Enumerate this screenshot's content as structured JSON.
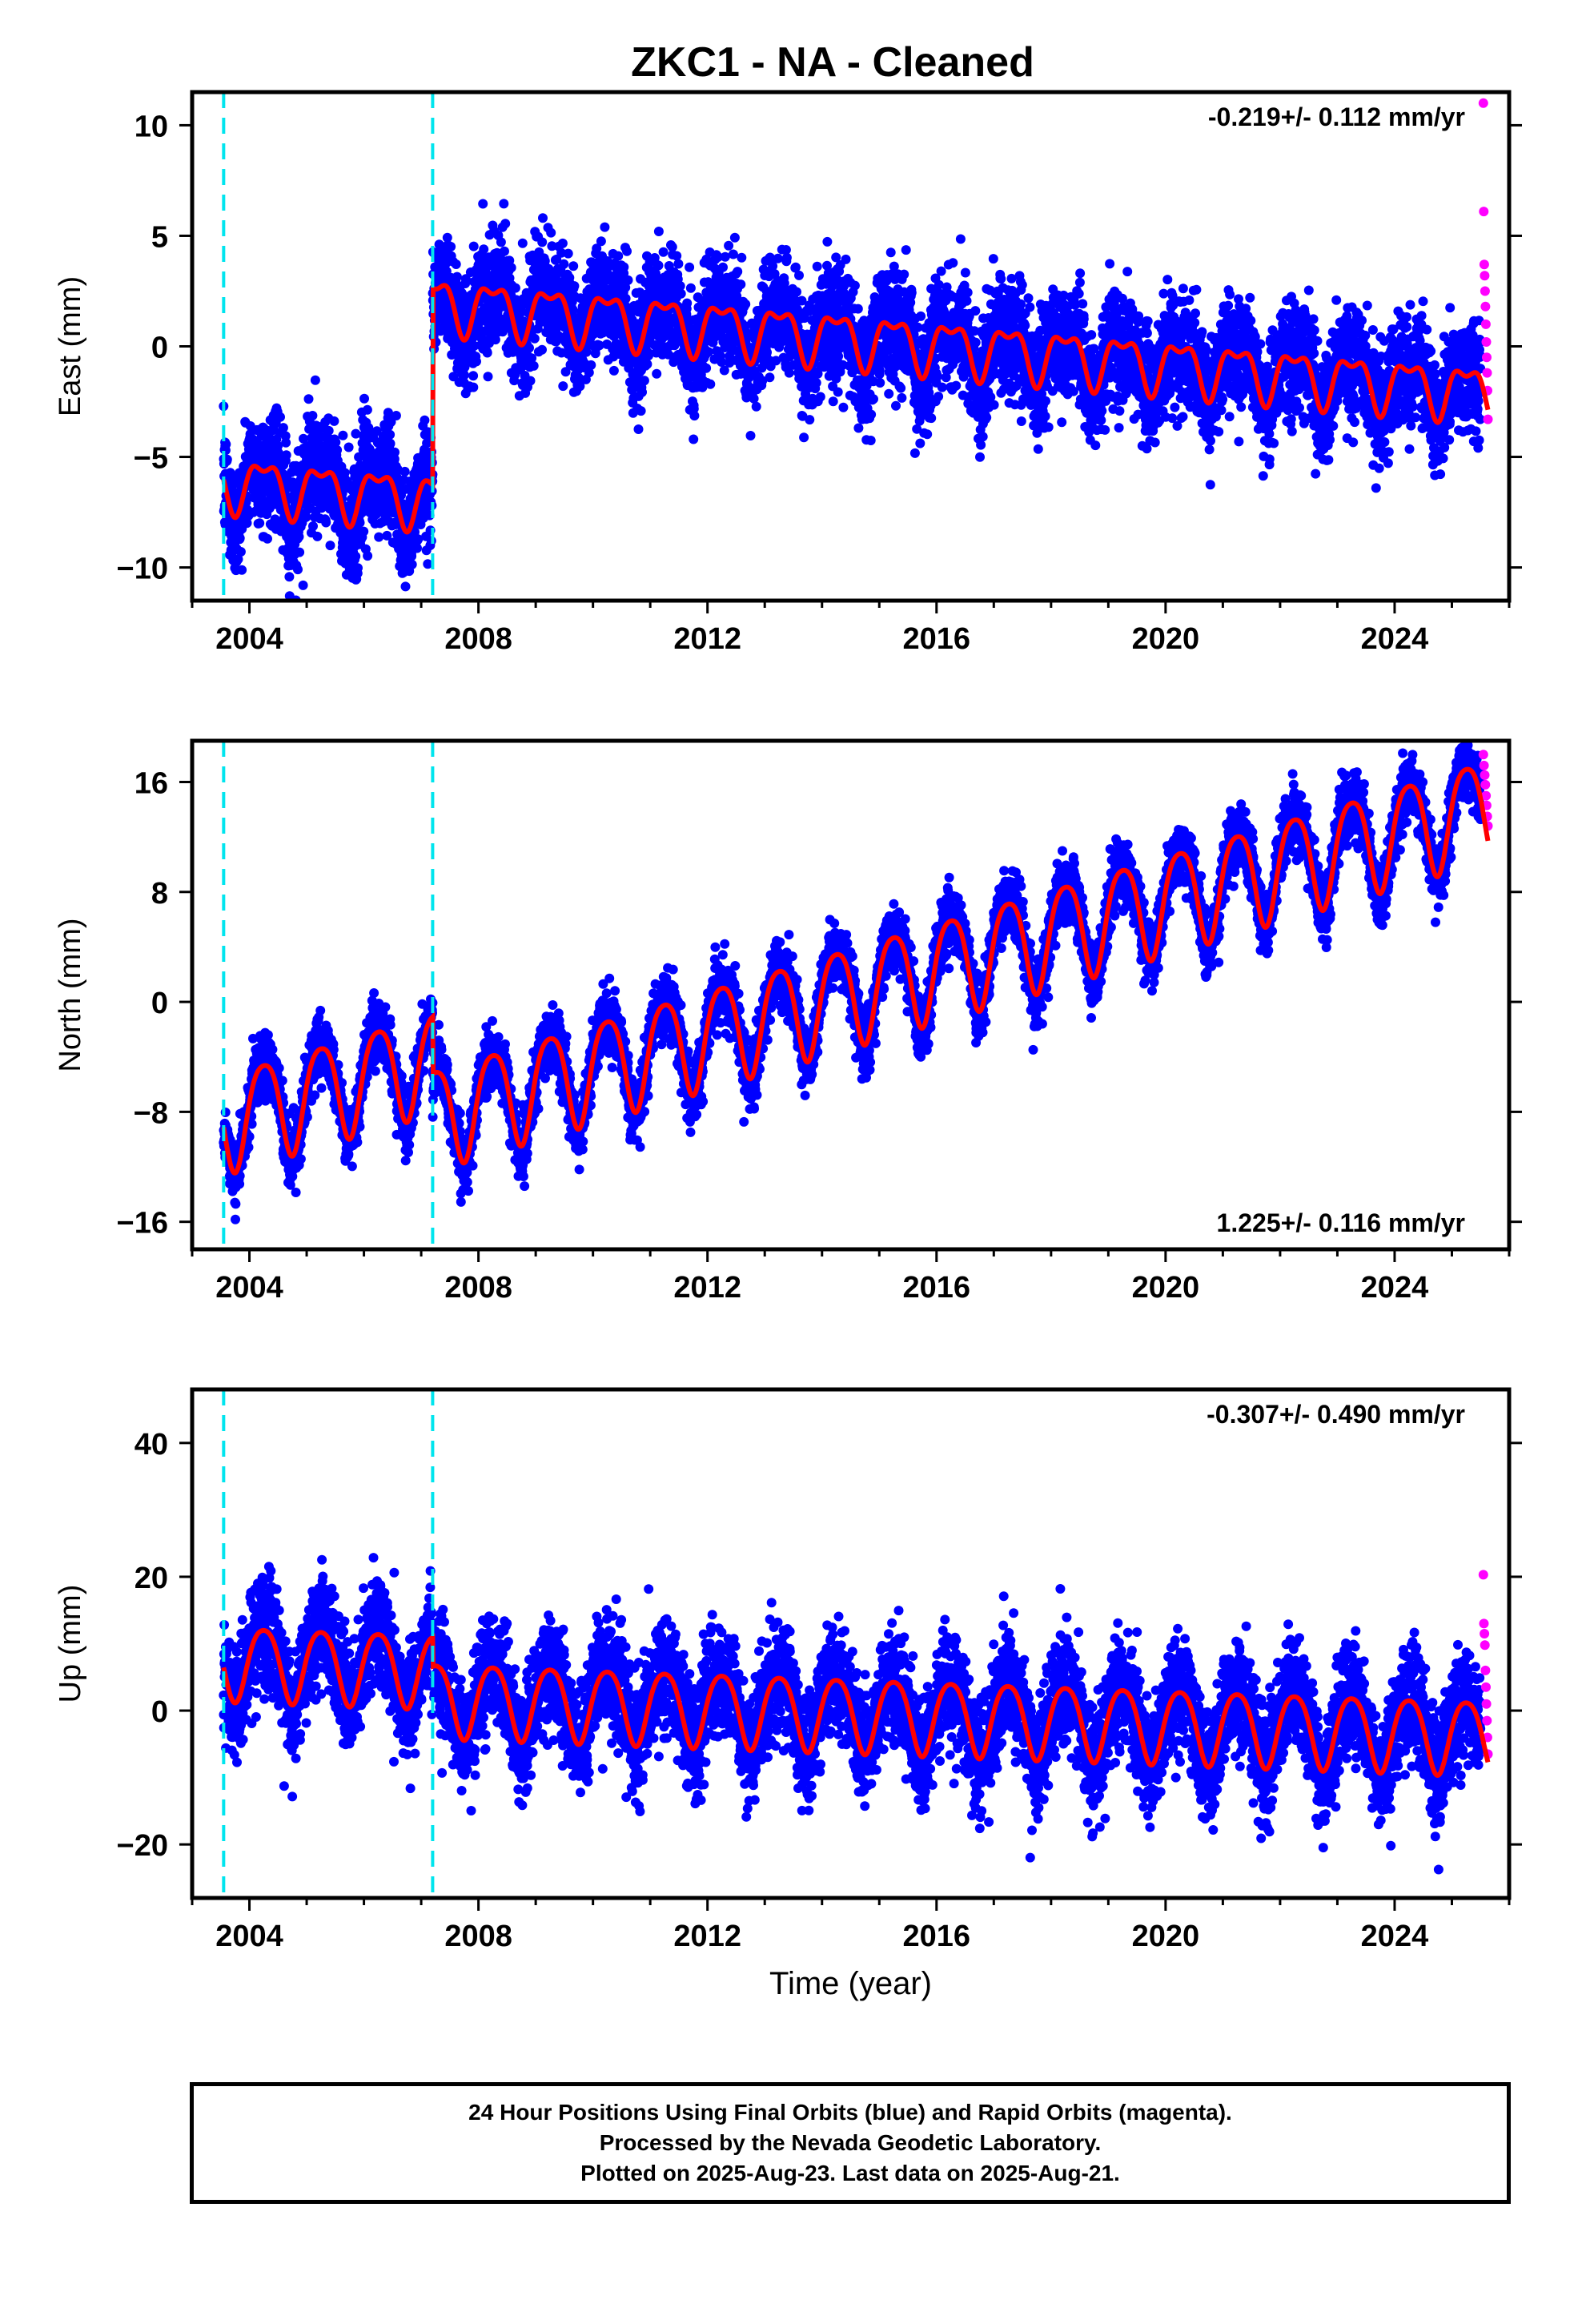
{
  "title": "ZKC1  - NA - Cleaned",
  "footer": {
    "lines": [
      "24 Hour Positions Using Final Orbits (blue) and Rapid Orbits (magenta).",
      "Processed by the Nevada Geodetic Laboratory.",
      "Plotted on 2025-Aug-23. Last data on 2025-Aug-21."
    ]
  },
  "colors": {
    "final_orbits": "#0000ff",
    "rapid_orbits": "#ff00ff",
    "model": "#ff0000",
    "equipment_change": "#00e5ee"
  },
  "chart_data": [
    {
      "type": "scatter",
      "ylabel": "East (mm)",
      "xlabel": "",
      "xlim": [
        2003.0,
        2026.0
      ],
      "ylim": [
        -11.5,
        11.5
      ],
      "x_ticks": [
        2004,
        2008,
        2012,
        2016,
        2020,
        2024
      ],
      "y_ticks": [
        -10,
        -5,
        0,
        5,
        10
      ],
      "rate_label": "-0.219+/- 0.112 mm/yr",
      "rate_position": "top-right",
      "equipment_changes": [
        2003.55,
        2007.2
      ],
      "model": {
        "offsets": [
          {
            "t": 2003.55,
            "value": -6.1
          },
          {
            "t": 2007.2,
            "value": 2.0
          }
        ],
        "rate_mm_per_yr": -0.219,
        "annual_amplitude": 1.1,
        "semiannual_amplitude": 0.5
      },
      "series": [
        {
          "name": "Final Orbits",
          "x_range": [
            2003.55,
            2025.5
          ],
          "noise": 1.2,
          "outliers": 3.5
        },
        {
          "name": "Rapid Orbits",
          "x_range": [
            2025.55,
            2025.63
          ],
          "values": [
            11.0,
            6.1,
            3.7,
            3.2,
            2.5,
            1.8,
            1.0,
            0.2,
            -0.5,
            -1.2,
            -2.0,
            -3.3
          ]
        }
      ]
    },
    {
      "type": "scatter",
      "ylabel": "North (mm)",
      "xlabel": "",
      "xlim": [
        2003.0,
        2026.0
      ],
      "ylim": [
        -18.0,
        19.0
      ],
      "x_ticks": [
        2004,
        2008,
        2012,
        2016,
        2020,
        2024
      ],
      "y_ticks": [
        -16,
        -8,
        0,
        8,
        16
      ],
      "rate_label": "1.225+/- 0.116 mm/yr",
      "rate_position": "bottom-right",
      "equipment_changes": [
        2003.55,
        2007.2
      ],
      "model": {
        "offsets": [
          {
            "t": 2003.55,
            "value": -8.5
          },
          {
            "t": 2007.2,
            "value": -8.2
          }
        ],
        "rate_mm_per_yr": 1.225,
        "annual_amplitude": 3.6,
        "semiannual_amplitude": 0.6
      },
      "series": [
        {
          "name": "Final Orbits",
          "x_range": [
            2003.55,
            2025.5
          ],
          "noise": 1.1,
          "outliers": 3.0
        },
        {
          "name": "Rapid Orbits",
          "x_range": [
            2025.55,
            2025.63
          ],
          "values": [
            18.0,
            17.2,
            16.5,
            15.8,
            15.0,
            14.3,
            13.5,
            12.8
          ]
        }
      ]
    },
    {
      "type": "scatter",
      "ylabel": "Up (mm)",
      "xlabel": "Time (year)",
      "xlim": [
        2003.0,
        2026.0
      ],
      "ylim": [
        -28.0,
        48.0
      ],
      "x_ticks": [
        2004,
        2008,
        2012,
        2016,
        2020,
        2024
      ],
      "y_ticks": [
        -20,
        0,
        20,
        40
      ],
      "rate_label": "-0.307+/- 0.490 mm/yr",
      "rate_position": "top-right",
      "equipment_changes": [
        2003.55,
        2007.2
      ],
      "model": {
        "offsets": [
          {
            "t": 2003.55,
            "value": 7.5
          },
          {
            "t": 2007.2,
            "value": 2.0
          }
        ],
        "rate_mm_per_yr": -0.307,
        "annual_amplitude": 5.5,
        "semiannual_amplitude": 0.8
      },
      "series": [
        {
          "name": "Final Orbits",
          "x_range": [
            2003.55,
            2025.5
          ],
          "noise": 4.0,
          "outliers": 14.0
        },
        {
          "name": "Rapid Orbits",
          "x_range": [
            2025.55,
            2025.63
          ],
          "values": [
            20.3,
            13.0,
            11.5,
            9.8,
            6.0,
            3.5,
            1.0,
            -1.5,
            -4.0,
            -6.5
          ]
        }
      ]
    }
  ]
}
